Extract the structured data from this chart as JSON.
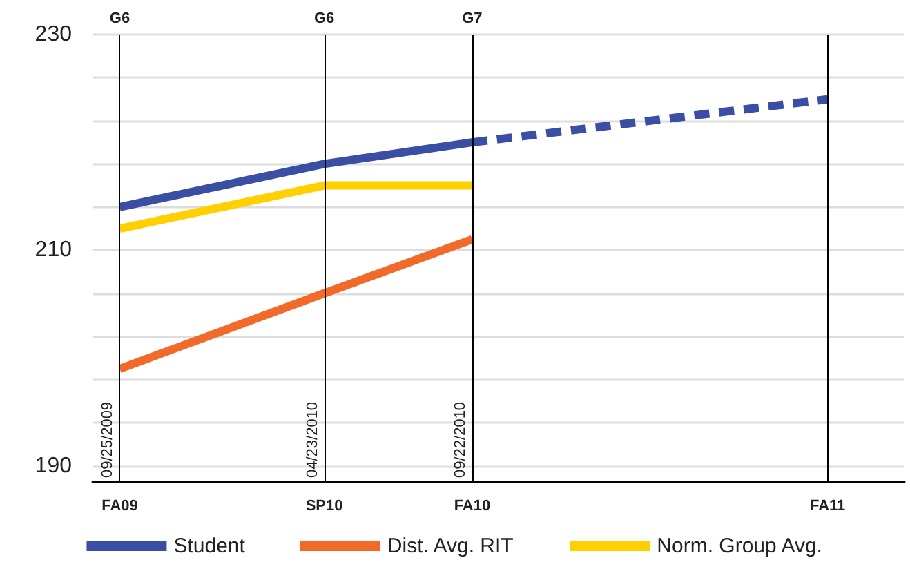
{
  "chart_data": {
    "type": "line",
    "x": [
      "2009-09-25",
      "2010-04-23",
      "2010-09-22"
    ],
    "series": [
      {
        "name": "Student",
        "color": "#3a4fa3",
        "values": [
          214,
          218,
          220
        ]
      },
      {
        "color": "#3a4fa3",
        "x": [
          "2010-09-22",
          "2011-09-22"
        ],
        "values": [
          220,
          224
        ],
        "line_style": "dashed"
      },
      {
        "name": "Dist. Avg. RIT",
        "color": "#f26a2a",
        "values": [
          199,
          206,
          211
        ]
      },
      {
        "name": "Norm. Group Avg.",
        "color": "#ffd000",
        "values": [
          212,
          216,
          216
        ]
      }
    ],
    "xlim": [
      "2009-08-28",
      "2011-12-10"
    ],
    "xticks": [
      {
        "value": "2009-09-25",
        "label": "FA09"
      },
      {
        "value": "2010-04-23",
        "label": "SP10"
      },
      {
        "value": "2010-09-22",
        "label": "FA10"
      },
      {
        "value": "2011-09-22",
        "label": "FA11"
      }
    ],
    "x2lim": [
      "2009-08-28",
      "2011-12-10"
    ],
    "x2ticks": [
      {
        "value": "2009-09-25",
        "label": "G6"
      },
      {
        "value": "2010-04-23",
        "label": "G6"
      },
      {
        "value": "2010-09-22",
        "label": "G7"
      }
    ],
    "ylim": [
      188.5,
      230
    ],
    "yticks": [
      190,
      {
        "value": 194,
        "label": null
      },
      {
        "value": 198,
        "label": null
      },
      {
        "value": 202,
        "label": null
      },
      {
        "value": 206,
        "label": null
      },
      210,
      {
        "value": 214,
        "label": null
      },
      {
        "value": 218,
        "label": null
      },
      {
        "value": 222,
        "label": null
      },
      {
        "value": 226,
        "label": null
      },
      230
    ],
    "ref_lines": [
      {
        "axis": "x",
        "value": "2009-09-25",
        "label": "09/25/2009",
        "color": "#000000"
      },
      {
        "axis": "x",
        "value": "2010-04-23",
        "label": "04/23/2010",
        "color": "#000000"
      },
      {
        "axis": "x",
        "value": "2010-09-22",
        "label": "09/22/2010",
        "color": "#000000"
      },
      {
        "axis": "x",
        "value": "2011-09-22",
        "color": "#000000"
      }
    ],
    "grid": "y",
    "legend": "bottom",
    "marker": "none",
    "line_style": "solid"
  }
}
